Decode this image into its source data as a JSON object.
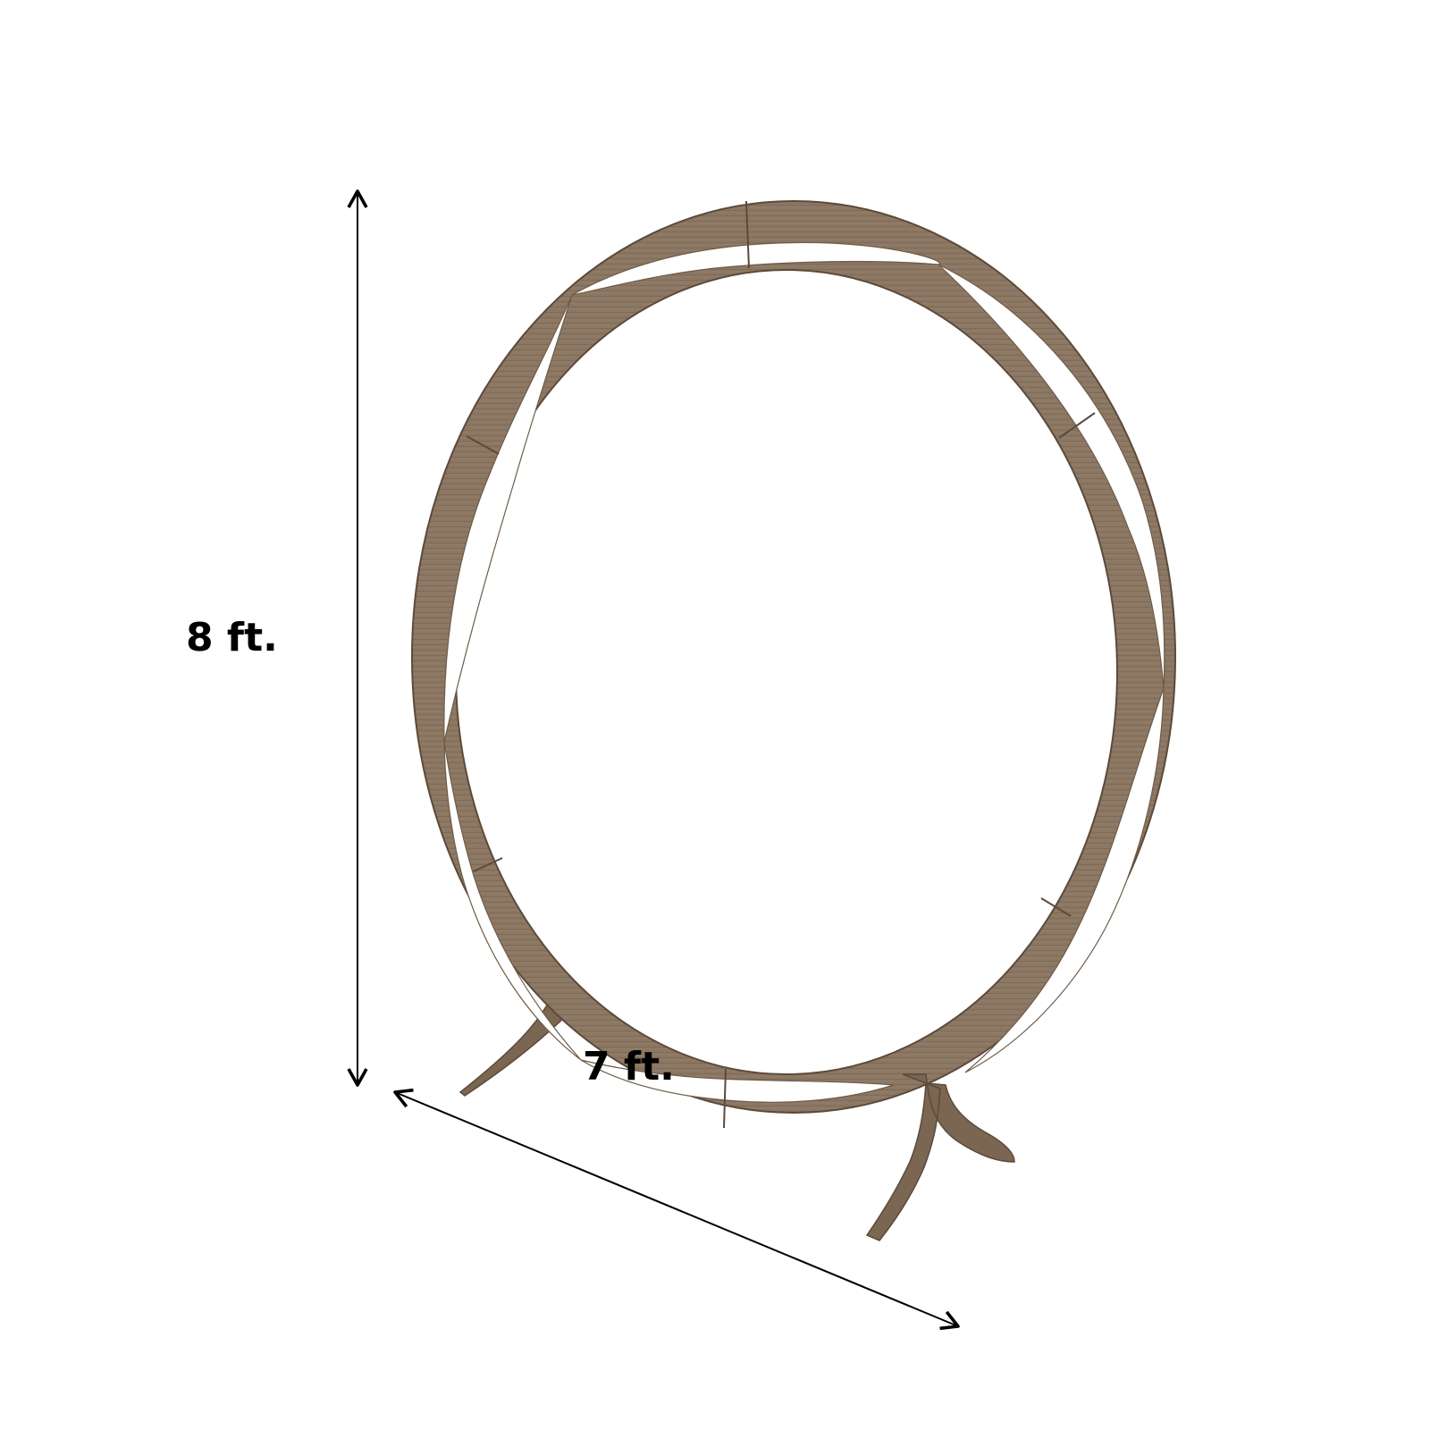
{
  "dimensions": {
    "height": {
      "label": "8 ft.",
      "value": 8,
      "unit": "ft"
    },
    "width": {
      "label": "7 ft.",
      "value": 7,
      "unit": "ft"
    }
  },
  "colors": {
    "background": "#ffffff",
    "wood_base": "#8b7762",
    "wood_dark": "#6e5b48",
    "wood_edge": "#5c4a3a",
    "arrow": "#000000"
  }
}
